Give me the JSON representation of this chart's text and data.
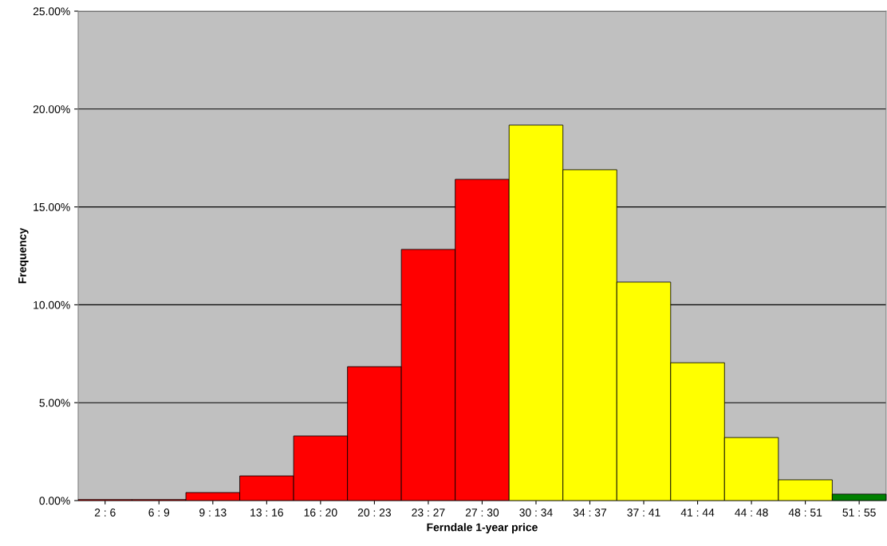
{
  "chart_data": {
    "type": "bar",
    "xlabel": "Ferndale 1-year price",
    "ylabel": "Frequency",
    "categories": [
      "2 : 6",
      "6 : 9",
      "9 : 13",
      "13 : 16",
      "16 : 20",
      "20 : 23",
      "23 : 27",
      "27 : 30",
      "30 : 34",
      "34 : 37",
      "37 : 41",
      "41 : 44",
      "44 : 48",
      "48 : 51",
      "51 : 55"
    ],
    "values": [
      0.05,
      0.05,
      0.41,
      1.26,
      3.3,
      6.84,
      12.83,
      16.41,
      19.18,
      16.9,
      11.16,
      7.04,
      3.22,
      1.06,
      0.33
    ],
    "colors": [
      "#ff0000",
      "#ff0000",
      "#ff0000",
      "#ff0000",
      "#ff0000",
      "#ff0000",
      "#ff0000",
      "#ff0000",
      "#ffff00",
      "#ffff00",
      "#ffff00",
      "#ffff00",
      "#ffff00",
      "#ffff00",
      "#008000"
    ],
    "ylim": [
      0,
      25
    ],
    "yticks": [
      {
        "value": 0,
        "label": "0.00%"
      },
      {
        "value": 5,
        "label": "5.00%"
      },
      {
        "value": 10,
        "label": "10.00%"
      },
      {
        "value": 15,
        "label": "15.00%"
      },
      {
        "value": 20,
        "label": "20.00%"
      },
      {
        "value": 25,
        "label": "25.00%"
      }
    ],
    "grid": "y",
    "legend": false
  }
}
